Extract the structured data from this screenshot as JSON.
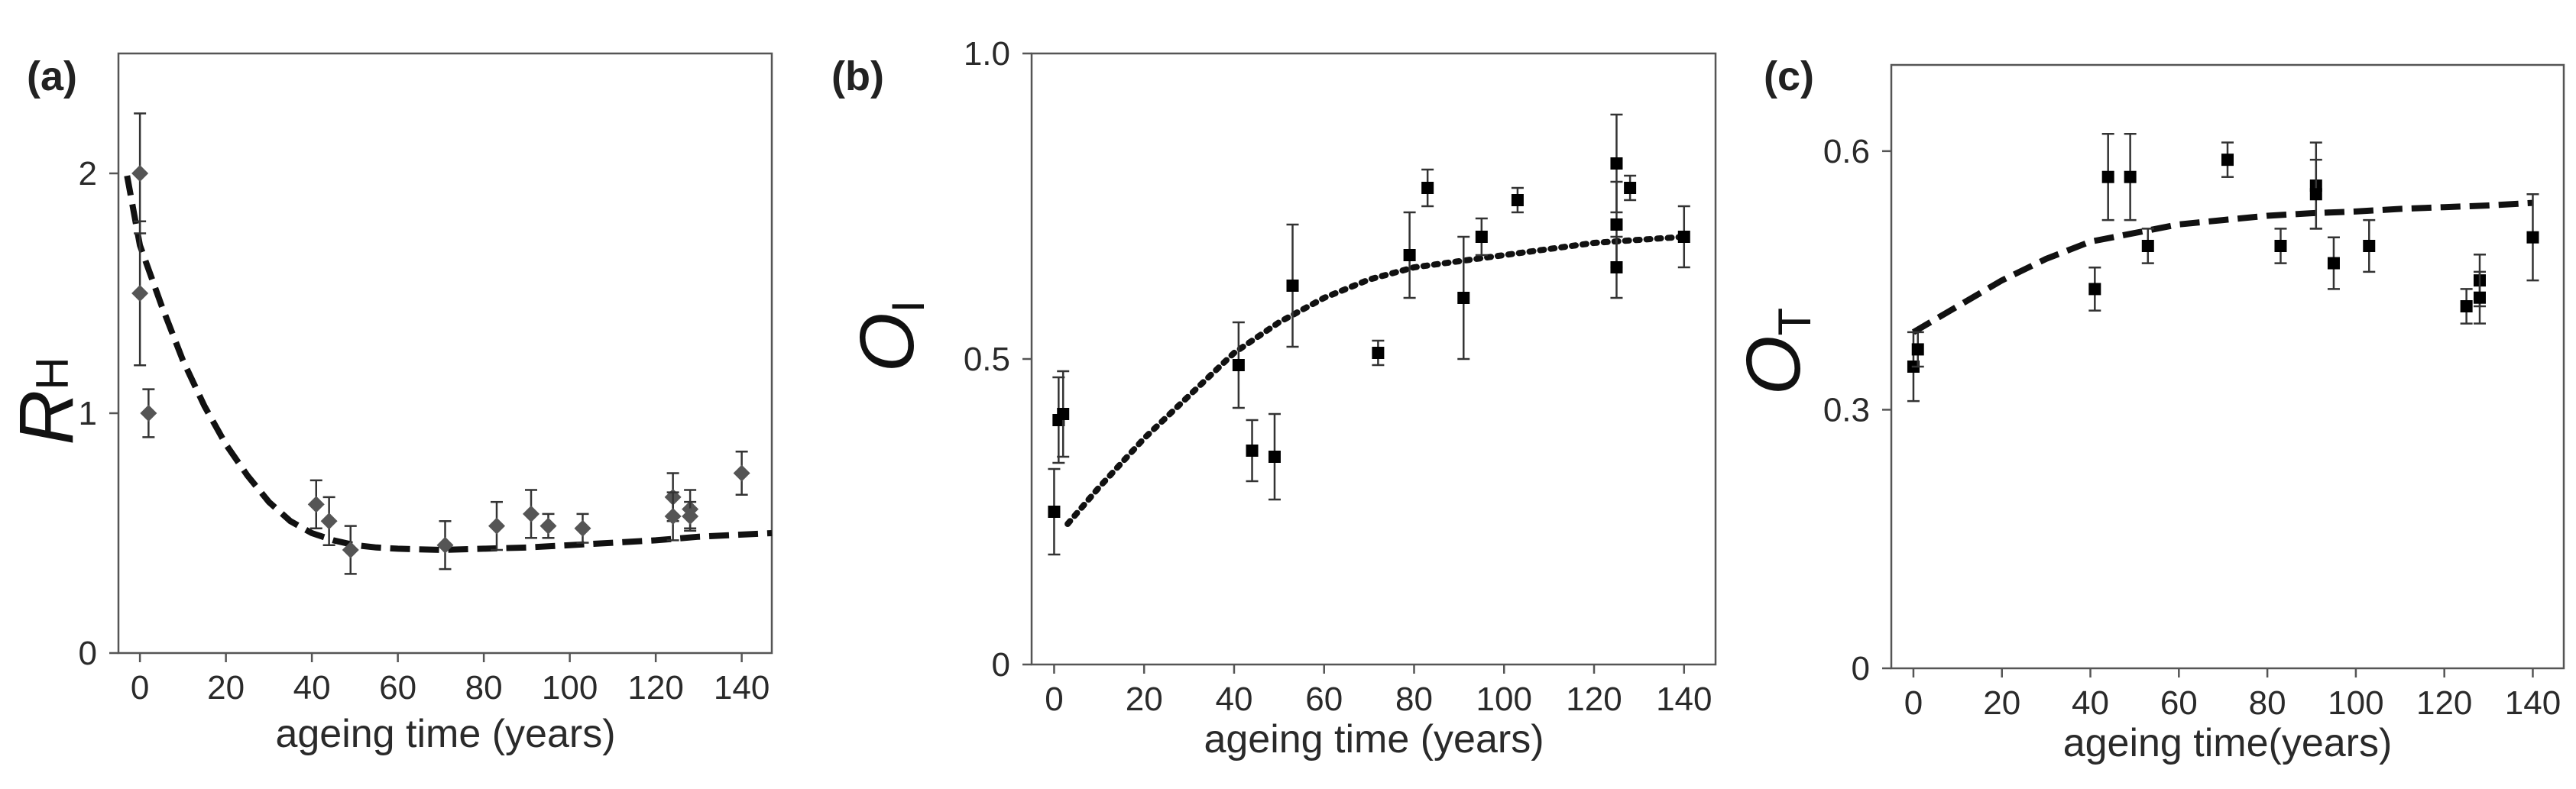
{
  "chart_data": [
    {
      "type": "scatter",
      "panel_label": "(a)",
      "ylabel_main": "R",
      "ylabel_sub": "H",
      "xlabel": "ageing time (years)",
      "xlim": [
        -5,
        147
      ],
      "ylim": [
        0,
        2.5
      ],
      "xticks": [
        0,
        20,
        40,
        60,
        80,
        100,
        120,
        140
      ],
      "yticks": [
        0,
        1,
        2
      ],
      "marker": "diamond",
      "marker_color": "#555555",
      "fit_style": "dashed",
      "points": [
        {
          "x": 0,
          "y": 2.0,
          "err": 0.25
        },
        {
          "x": 0,
          "y": 1.5,
          "err": 0.3
        },
        {
          "x": 2,
          "y": 1.0,
          "err": 0.1
        },
        {
          "x": 41,
          "y": 0.62,
          "err": 0.1
        },
        {
          "x": 44,
          "y": 0.55,
          "err": 0.1
        },
        {
          "x": 49,
          "y": 0.43,
          "err": 0.1
        },
        {
          "x": 71,
          "y": 0.45,
          "err": 0.1
        },
        {
          "x": 83,
          "y": 0.53,
          "err": 0.1
        },
        {
          "x": 91,
          "y": 0.58,
          "err": 0.1
        },
        {
          "x": 95,
          "y": 0.53,
          "err": 0.05
        },
        {
          "x": 103,
          "y": 0.52,
          "err": 0.06
        },
        {
          "x": 124,
          "y": 0.65,
          "err": 0.1
        },
        {
          "x": 124,
          "y": 0.57,
          "err": 0.1
        },
        {
          "x": 128,
          "y": 0.6,
          "err": 0.08
        },
        {
          "x": 128,
          "y": 0.57,
          "err": 0.06
        },
        {
          "x": 140,
          "y": 0.75,
          "err": 0.09
        }
      ],
      "fit": [
        [
          -3,
          1.99
        ],
        [
          0,
          1.7
        ],
        [
          5,
          1.45
        ],
        [
          10,
          1.22
        ],
        [
          15,
          1.03
        ],
        [
          20,
          0.87
        ],
        [
          25,
          0.74
        ],
        [
          30,
          0.63
        ],
        [
          35,
          0.55
        ],
        [
          40,
          0.5
        ],
        [
          45,
          0.47
        ],
        [
          50,
          0.45
        ],
        [
          55,
          0.44
        ],
        [
          60,
          0.435
        ],
        [
          70,
          0.43
        ],
        [
          80,
          0.435
        ],
        [
          90,
          0.44
        ],
        [
          100,
          0.45
        ],
        [
          110,
          0.46
        ],
        [
          120,
          0.47
        ],
        [
          130,
          0.485
        ],
        [
          147,
          0.5
        ]
      ]
    },
    {
      "type": "scatter",
      "panel_label": "(b)",
      "ylabel_main": "O",
      "ylabel_sub": "I",
      "xlabel": "ageing time (years)",
      "xlim": [
        -5,
        147
      ],
      "ylim": [
        0,
        1.0
      ],
      "xticks": [
        0,
        20,
        40,
        60,
        80,
        100,
        120,
        140
      ],
      "yticks": [
        0,
        0.5,
        1.0
      ],
      "ytick_labels": [
        "0",
        "0.5",
        "1.0"
      ],
      "marker": "square",
      "marker_color": "#000000",
      "fit_style": "dotted",
      "points": [
        {
          "x": 0,
          "y": 0.25,
          "err": 0.07
        },
        {
          "x": 1,
          "y": 0.4,
          "err": 0.07
        },
        {
          "x": 2,
          "y": 0.41,
          "err": 0.07
        },
        {
          "x": 41,
          "y": 0.49,
          "err": 0.07
        },
        {
          "x": 44,
          "y": 0.35,
          "err": 0.05
        },
        {
          "x": 49,
          "y": 0.34,
          "err": 0.07
        },
        {
          "x": 53,
          "y": 0.62,
          "err": 0.1
        },
        {
          "x": 72,
          "y": 0.51,
          "err": 0.02
        },
        {
          "x": 79,
          "y": 0.67,
          "err": 0.07
        },
        {
          "x": 83,
          "y": 0.78,
          "err": 0.03
        },
        {
          "x": 91,
          "y": 0.6,
          "err": 0.1
        },
        {
          "x": 95,
          "y": 0.7,
          "err": 0.03
        },
        {
          "x": 103,
          "y": 0.76,
          "err": 0.02
        },
        {
          "x": 125,
          "y": 0.82,
          "err": 0.08
        },
        {
          "x": 125,
          "y": 0.72,
          "err": 0.07
        },
        {
          "x": 125,
          "y": 0.65,
          "err": 0.05
        },
        {
          "x": 128,
          "y": 0.78,
          "err": 0.02
        },
        {
          "x": 140,
          "y": 0.7,
          "err": 0.05
        }
      ],
      "fit": [
        [
          3,
          0.23
        ],
        [
          10,
          0.29
        ],
        [
          20,
          0.37
        ],
        [
          30,
          0.44
        ],
        [
          40,
          0.51
        ],
        [
          50,
          0.56
        ],
        [
          60,
          0.6
        ],
        [
          70,
          0.63
        ],
        [
          80,
          0.65
        ],
        [
          90,
          0.66
        ],
        [
          100,
          0.67
        ],
        [
          110,
          0.68
        ],
        [
          120,
          0.69
        ],
        [
          130,
          0.695
        ],
        [
          140,
          0.7
        ]
      ]
    },
    {
      "type": "scatter",
      "panel_label": "(c)",
      "ylabel_main": "O",
      "ylabel_sub": "T",
      "xlabel": "ageing time(years)",
      "xlim": [
        -5,
        147
      ],
      "ylim": [
        0,
        0.7
      ],
      "xticks": [
        0,
        20,
        40,
        60,
        80,
        100,
        120,
        140
      ],
      "yticks": [
        0,
        0.3,
        0.6
      ],
      "marker": "square",
      "marker_color": "#000000",
      "fit_style": "dashed",
      "points": [
        {
          "x": 0,
          "y": 0.35,
          "err": 0.04
        },
        {
          "x": 1,
          "y": 0.37,
          "err": 0.02
        },
        {
          "x": 41,
          "y": 0.44,
          "err": 0.025
        },
        {
          "x": 44,
          "y": 0.57,
          "err": 0.05
        },
        {
          "x": 49,
          "y": 0.57,
          "err": 0.05
        },
        {
          "x": 53,
          "y": 0.49,
          "err": 0.02
        },
        {
          "x": 71,
          "y": 0.59,
          "err": 0.02
        },
        {
          "x": 83,
          "y": 0.49,
          "err": 0.02
        },
        {
          "x": 91,
          "y": 0.56,
          "err": 0.05
        },
        {
          "x": 91,
          "y": 0.55,
          "err": 0.04
        },
        {
          "x": 95,
          "y": 0.47,
          "err": 0.03
        },
        {
          "x": 103,
          "y": 0.49,
          "err": 0.03
        },
        {
          "x": 125,
          "y": 0.42,
          "err": 0.02
        },
        {
          "x": 128,
          "y": 0.45,
          "err": 0.03
        },
        {
          "x": 128,
          "y": 0.43,
          "err": 0.03
        },
        {
          "x": 140,
          "y": 0.5,
          "err": 0.05
        }
      ],
      "fit": [
        [
          0,
          0.39
        ],
        [
          10,
          0.42
        ],
        [
          20,
          0.45
        ],
        [
          30,
          0.475
        ],
        [
          40,
          0.495
        ],
        [
          50,
          0.505
        ],
        [
          60,
          0.515
        ],
        [
          70,
          0.52
        ],
        [
          80,
          0.525
        ],
        [
          90,
          0.528
        ],
        [
          100,
          0.53
        ],
        [
          110,
          0.533
        ],
        [
          120,
          0.535
        ],
        [
          130,
          0.537
        ],
        [
          140,
          0.54
        ]
      ]
    }
  ]
}
